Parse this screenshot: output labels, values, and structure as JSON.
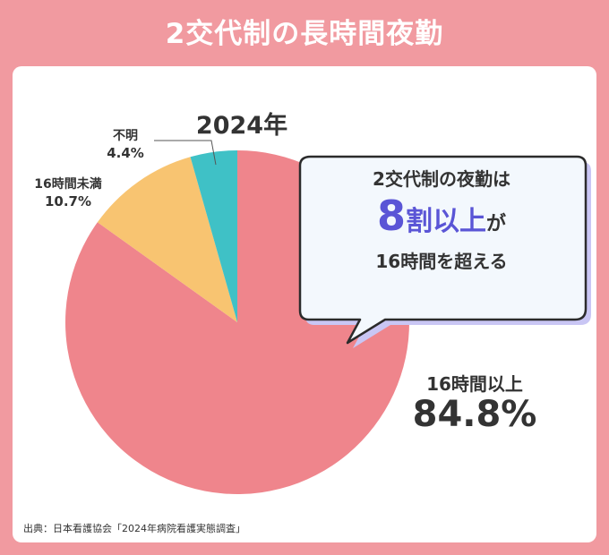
{
  "title": "2交代制の長時間夜勤",
  "year_label": "2024年",
  "colors": {
    "background": "#f19aa0",
    "over16": "#ef858c",
    "under16": "#f8c471",
    "unknown": "#3fc1c6",
    "callout_accent": "#5a55d6",
    "callout_shadow": "#c9c6f4",
    "callout_fill": "#f3f8fd"
  },
  "chart_data": {
    "type": "pie",
    "title": "2024年",
    "slices": [
      {
        "label": "16時間以上",
        "value": 84.8,
        "value_label": "84.8%"
      },
      {
        "label": "16時間未満",
        "value": 10.7,
        "value_label": "10.7%"
      },
      {
        "label": "不明",
        "value": 4.4,
        "value_label": "4.4%"
      }
    ],
    "start": "top",
    "direction": "clockwise"
  },
  "callout": {
    "line1": "2交代制の夜勤は",
    "highlight_number": "8",
    "highlight_text": "割以上",
    "suffix": "が",
    "line3": "16時間を超える"
  },
  "source": "出典：日本看護協会「2024年病院看護実態調査」"
}
